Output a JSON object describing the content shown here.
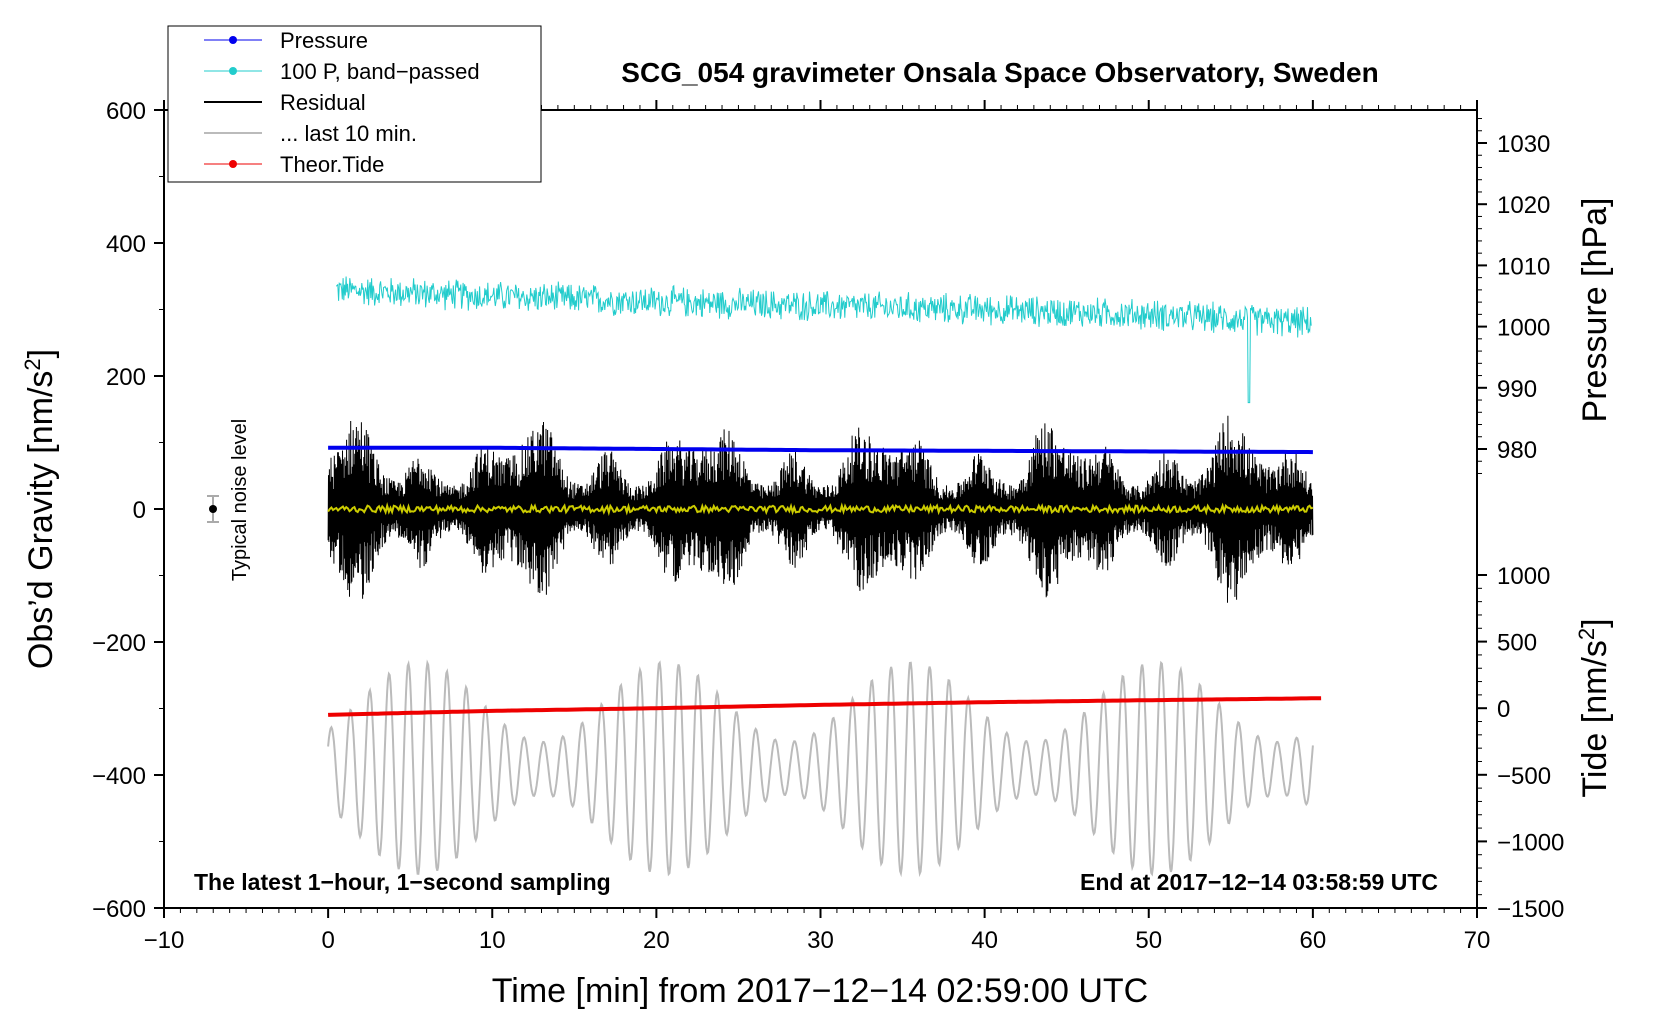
{
  "chart_data": {
    "type": "line",
    "title": "SCG_054 gravimeter Onsala Space Observatory, Sweden",
    "xlabel": "Time [min] from 2017−12−14 02:59:00 UTC",
    "ylabel_left_main": "Obs’d Gravity [nm/s",
    "ylabel_left_sup": "2",
    "ylabel_left_end": "]",
    "ylabel_right_pressure": "Pressure [hPa]",
    "ylabel_right_tide_main": "Tide [nm/s",
    "ylabel_right_tide_sup": "2",
    "ylabel_right_tide_end": "]",
    "xlim": [
      -10,
      70
    ],
    "ylim": [
      -600,
      600
    ],
    "pressure_lim": [
      975,
      1035
    ],
    "tide_range": [
      -1500,
      1000
    ],
    "x_ticks": [
      -10,
      0,
      10,
      20,
      30,
      40,
      50,
      60,
      70
    ],
    "x_tick_labels": [
      "−10",
      "0",
      "10",
      "20",
      "30",
      "40",
      "50",
      "60",
      "70"
    ],
    "y_ticks": [
      600,
      400,
      200,
      0,
      -200,
      -400,
      -600
    ],
    "y_tick_labels": [
      "600",
      "400",
      "200",
      "0",
      "−200",
      "−400",
      "−600"
    ],
    "pressure_ticks": [
      1030,
      1020,
      1010,
      1000,
      990,
      980
    ],
    "pressure_tick_labels": [
      "1030",
      "1020",
      "1010",
      "1000",
      "990",
      "980"
    ],
    "tide_ticks": [
      1000,
      500,
      0,
      -500,
      -1000,
      -1500
    ],
    "tide_tick_labels": [
      "1000",
      "500",
      "0",
      "−500",
      "−1000",
      "−1500"
    ],
    "legend": [
      {
        "label": "Pressure",
        "color": "#0000ee",
        "marker": "dot"
      },
      {
        "label": "100 P, band−passed",
        "color": "#22cccc",
        "marker": "dot"
      },
      {
        "label": "Residual",
        "color": "#000000",
        "marker": "line"
      },
      {
        "label": "... last 10 min.",
        "color": "#bbbbbb",
        "marker": "line"
      },
      {
        "label": "Theor.Tide",
        "color": "#ee0000",
        "marker": "dot"
      }
    ],
    "legend_position": "top-left",
    "annotations": {
      "left_note": "The latest 1−hour, 1−second sampling",
      "right_note": "End at 2017−12−14 03:58:59 UTC",
      "noise_label": "Typical noise level"
    },
    "noise_marker": {
      "x": -7,
      "y": 0,
      "err": 20
    },
    "series": [
      {
        "name": "Pressure",
        "axis": "pressure",
        "color": "#0000ee",
        "x": [
          0,
          10,
          20,
          30,
          40,
          50,
          60
        ],
        "values": [
          980.2,
          980.2,
          980.0,
          979.8,
          979.7,
          979.6,
          979.5
        ]
      },
      {
        "name": "100 P, band−passed",
        "axis": "gravity",
        "color": "#22cccc",
        "x": [
          0,
          10,
          20,
          30,
          40,
          50,
          60
        ],
        "values": [
          330,
          320,
          312,
          305,
          300,
          292,
          280
        ],
        "amplitude": 22
      },
      {
        "name": "Residual",
        "axis": "gravity",
        "color": "#000000",
        "x": [
          0,
          10,
          20,
          30,
          40,
          50,
          60
        ],
        "values": [
          0,
          0,
          0,
          0,
          0,
          0,
          0
        ],
        "extremes": {
          "max": 180,
          "min": -175
        }
      },
      {
        "name": "Band-passed residual",
        "axis": "gravity",
        "color": "#cccc00",
        "x": [
          0,
          60
        ],
        "values": [
          0,
          0
        ],
        "amplitude": 5
      },
      {
        "name": "... last 10 min.",
        "axis": "gravity",
        "color": "#bbbbbb",
        "x": [
          0,
          60
        ],
        "baseline": -390,
        "amplitude_range": [
          40,
          160
        ]
      },
      {
        "name": "Theor.Tide",
        "axis": "tide",
        "color": "#ee0000",
        "x": [
          0,
          10,
          20,
          30,
          40,
          50,
          60.5
        ],
        "values": [
          -50,
          -20,
          0,
          25,
          45,
          60,
          75
        ]
      }
    ]
  }
}
